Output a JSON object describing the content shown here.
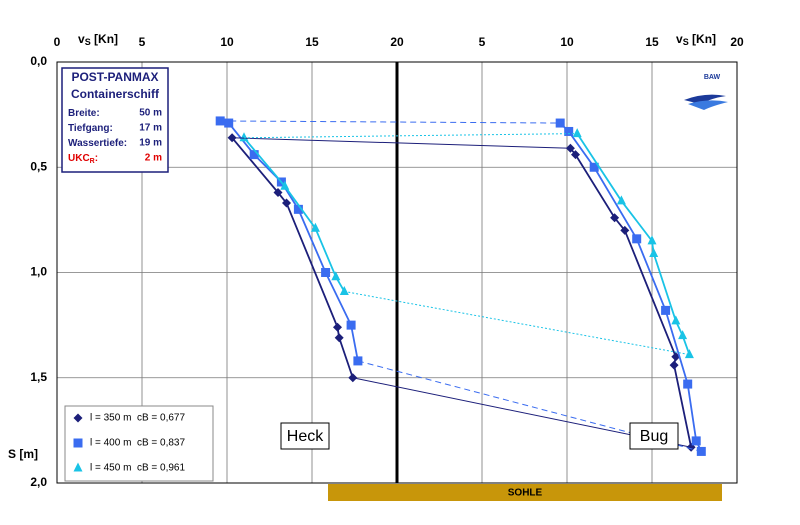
{
  "chart_data": [
    {
      "type": "line",
      "x_label": "v",
      "x_label_sub": "S",
      "x_label_end": " [Kn]",
      "y_label": "S [m]",
      "annotation": "Heck",
      "xlim": [
        0,
        20
      ],
      "xticks": [
        0,
        5,
        10,
        15,
        20
      ],
      "ylim": [
        0,
        2
      ],
      "y_inverted": true,
      "yticks": [
        {
          "value": 0,
          "label": "0,0"
        },
        {
          "value": 0.5,
          "label": "0,5"
        },
        {
          "value": 1,
          "label": "1,0"
        },
        {
          "value": 1.5,
          "label": "1,5"
        },
        {
          "value": 2,
          "label": "2,0"
        }
      ],
      "grid": true,
      "series": [
        {
          "name": "l = 350 m  cB = 0,677",
          "color": "#1c1f7a",
          "marker": "diamond",
          "dash": "solid",
          "x": [
            10.3,
            13.0,
            13.5,
            16.5,
            16.6,
            17.4
          ],
          "values": [
            0.36,
            0.62,
            0.67,
            1.26,
            1.31,
            1.5
          ]
        },
        {
          "name": "l = 400 m  cB = 0,837",
          "color": "#3a6cf0",
          "marker": "square",
          "dash": "dashed",
          "x": [
            9.6,
            10.1,
            11.6,
            13.2,
            14.2,
            15.8,
            17.3,
            17.7
          ],
          "values": [
            0.28,
            0.29,
            0.44,
            0.57,
            0.7,
            1.0,
            1.25,
            1.42
          ]
        },
        {
          "name": "l = 450 m  cB = 0,961",
          "color": "#19c3e6",
          "marker": "triangle",
          "dash": "dotted",
          "x": [
            11.0,
            13.4,
            15.2,
            16.4,
            16.9
          ],
          "values": [
            0.36,
            0.59,
            0.79,
            1.02,
            1.09
          ]
        }
      ]
    },
    {
      "type": "line",
      "x_label": "v",
      "x_label_sub": "S",
      "x_label_end": " [Kn]",
      "annotation": "Bug",
      "xlim": [
        0,
        20
      ],
      "xticks": [
        5,
        10,
        15,
        20
      ],
      "ylim": [
        0,
        2
      ],
      "y_inverted": true,
      "grid": true,
      "series": [
        {
          "color": "#1c1f7a",
          "marker": "diamond",
          "dash": "solid",
          "x": [
            10.2,
            10.5,
            12.8,
            13.4,
            16.4,
            16.3,
            17.3
          ],
          "values": [
            0.41,
            0.44,
            0.74,
            0.8,
            1.4,
            1.44,
            1.83
          ]
        },
        {
          "color": "#3a6cf0",
          "marker": "square",
          "dash": "dashed",
          "x": [
            9.6,
            10.1,
            11.6,
            14.1,
            15.8,
            17.1,
            17.6,
            17.9
          ],
          "values": [
            0.29,
            0.33,
            0.5,
            0.84,
            1.18,
            1.53,
            1.8,
            1.85
          ]
        },
        {
          "color": "#19c3e6",
          "marker": "triangle",
          "dash": "dotted",
          "x": [
            10.6,
            13.2,
            15.0,
            15.1,
            16.4,
            16.8,
            17.2
          ],
          "values": [
            0.34,
            0.66,
            0.85,
            0.91,
            1.23,
            1.3,
            1.39
          ]
        }
      ]
    }
  ],
  "info_box": {
    "title": "POST-PANMAX",
    "subtitle": "Containerschiff",
    "rows": [
      {
        "label": "Breite:",
        "value": "50 m"
      },
      {
        "label": "Tiefgang:",
        "value": "17 m"
      },
      {
        "label": "Wassertiefe:",
        "value": "19 m"
      },
      {
        "label": "UKC",
        "label_sub": "R",
        "label_end": ":",
        "value": "2 m"
      }
    ]
  },
  "logo": "BAW",
  "bottom_label": "SOHLE"
}
